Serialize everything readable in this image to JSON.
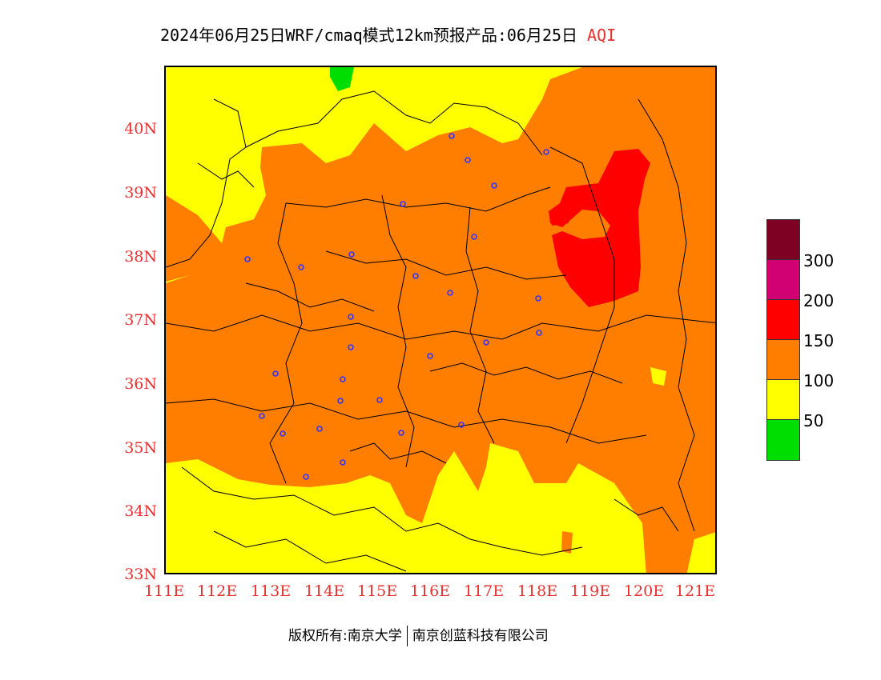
{
  "title": {
    "main": "2024年06月25日WRF/cmaq模式12km预报产品:06月25日",
    "product": "AQI"
  },
  "map": {
    "lat_labels": [
      "40N",
      "39N",
      "38N",
      "37N",
      "36N",
      "35N",
      "34N",
      "33N"
    ],
    "lon_labels": [
      "111E",
      "112E",
      "113E",
      "114E",
      "115E",
      "116E",
      "117E",
      "118E",
      "119E",
      "120E",
      "121E"
    ],
    "colors": {
      "green": "#00dd00",
      "yellow": "#ffff00",
      "orange": "#ff7e00",
      "red": "#ff0000",
      "border": "#000000",
      "city_marker": "#3333ff"
    }
  },
  "legend": {
    "swatches": [
      {
        "color": "#7e0023"
      },
      {
        "color": "#d10073"
      },
      {
        "color": "#ff0000"
      },
      {
        "color": "#ff7e00"
      },
      {
        "color": "#ffff00"
      },
      {
        "color": "#00dd00"
      }
    ],
    "labels": [
      "300",
      "200",
      "150",
      "100",
      "50"
    ]
  },
  "footer": {
    "copyright": "版权所有:南京大学",
    "company": "南京创蓝科技有限公司"
  }
}
